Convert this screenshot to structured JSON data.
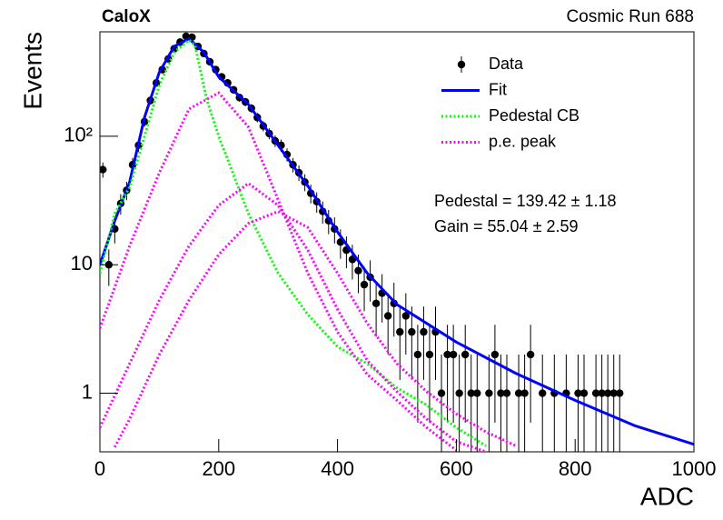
{
  "chart_data": {
    "type": "histfit",
    "title": "CaloX",
    "subtitle": "Cosmic Run 688",
    "x_label": "ADC",
    "y_label": "Events",
    "xlim": [
      0,
      1000
    ],
    "ylim": [
      0.35,
      650
    ],
    "log_y": true,
    "xticks": [
      0,
      200,
      400,
      600,
      800,
      1000
    ],
    "yticks": [
      1,
      10,
      {
        "value": 100,
        "label": "10²"
      }
    ],
    "legend": "top-right",
    "annotations": [
      "Pedestal = 139.42 ± 1.18",
      "Gain = 55.04 ± 2.59"
    ],
    "series": [
      {
        "name": "Data",
        "color": "#000000",
        "style": "points",
        "x": [
          5,
          15,
          25,
          35,
          45,
          55,
          65,
          75,
          85,
          95,
          105,
          115,
          125,
          135,
          145,
          155,
          165,
          175,
          185,
          195,
          205,
          215,
          225,
          235,
          245,
          255,
          265,
          275,
          285,
          295,
          305,
          315,
          325,
          335,
          345,
          355,
          365,
          375,
          385,
          395,
          405,
          415,
          425,
          435,
          445,
          455,
          465,
          475,
          485,
          495,
          505,
          515,
          525,
          535,
          545,
          555,
          565,
          575,
          585,
          595,
          605,
          615,
          625,
          635,
          645,
          655,
          665,
          675,
          685,
          695,
          705,
          715,
          725,
          735,
          745,
          755,
          765,
          775,
          785,
          795,
          805,
          815,
          825,
          835,
          845,
          855,
          865,
          875,
          885,
          895,
          905,
          915,
          925,
          935,
          945,
          955,
          965,
          975,
          985,
          995
        ],
        "values": [
          55,
          10,
          19,
          30,
          38,
          60,
          85,
          130,
          190,
          260,
          330,
          400,
          480,
          540,
          600,
          590,
          500,
          440,
          380,
          330,
          290,
          260,
          230,
          200,
          185,
          165,
          140,
          120,
          105,
          92,
          85,
          72,
          60,
          52,
          44,
          36,
          31,
          26,
          22,
          19,
          15,
          13,
          11,
          9,
          7,
          8,
          5,
          6,
          4,
          5,
          3,
          4,
          3,
          2,
          3,
          2,
          3,
          1,
          2,
          2,
          1,
          2,
          1,
          1,
          null,
          1,
          2,
          1,
          1,
          null,
          1,
          1,
          2,
          null,
          1,
          null,
          1,
          null,
          1,
          null,
          1,
          1,
          null,
          1,
          1,
          1,
          1,
          1,
          null,
          null,
          null,
          null,
          null,
          null,
          null,
          null,
          null,
          null,
          null,
          null
        ],
        "errors": [
          7.42,
          3.16,
          4.36,
          5.48,
          6.16,
          7.75,
          9.22,
          11.4,
          13.78,
          16.12,
          18.17,
          20,
          21.91,
          23.24,
          24.49,
          24.29,
          22.36,
          20.98,
          19.49,
          18.17,
          17.03,
          16.12,
          15.17,
          14.14,
          13.6,
          12.85,
          11.83,
          10.95,
          10.25,
          9.59,
          9.22,
          8.49,
          7.75,
          7.21,
          6.63,
          6,
          5.57,
          5.1,
          4.69,
          4.36,
          3.87,
          3.61,
          3.32,
          3,
          2.65,
          2.83,
          2.24,
          2.45,
          2,
          2.24,
          1.73,
          2,
          1.73,
          1.41,
          1.73,
          1.41,
          1.73,
          1,
          1.41,
          1.41,
          1,
          1.41,
          1,
          1,
          null,
          1,
          1.41,
          1,
          1,
          null,
          1,
          1,
          1.41,
          null,
          1,
          null,
          1,
          null,
          1,
          null,
          1,
          1,
          null,
          1,
          1,
          1,
          1,
          1,
          null,
          null,
          null,
          null,
          null,
          null,
          null,
          null,
          null,
          null,
          null,
          null
        ]
      },
      {
        "name": "Fit",
        "color": "#0000ff",
        "style": "solid",
        "curves": [
          {
            "x": [
              0,
              25,
              50,
              75,
              100,
              125,
              150,
              175,
              200,
              250,
              300,
              350,
              400,
              450,
              500,
              600,
              700,
              800,
              900,
              1000
            ],
            "values": [
              10,
              22,
              44,
              140,
              315,
              500,
              575,
              450,
              290,
              177,
              85,
              41,
              18,
              8.6,
              4.9,
              2.5,
              1.43,
              0.88,
              0.56,
              0.4
            ]
          }
        ]
      },
      {
        "name": "Pedestal CB",
        "color": "#00ff00",
        "style": "dotted",
        "curves": [
          {
            "x": [
              0,
              25,
              50,
              100,
              125,
              150,
              160,
              180,
              200,
              250,
              300,
              350,
              400,
              450,
              500,
              550,
              600,
              650
            ],
            "values": [
              8.6,
              25,
              40,
              250,
              450,
              560,
              510,
              192,
              100,
              25,
              8.6,
              4.1,
              2.3,
              1.7,
              1.1,
              0.81,
              0.54,
              0.39
            ]
          }
        ]
      },
      {
        "name": "p.e. peak",
        "color": "#ff00ff",
        "style": "dotted",
        "curves": [
          {
            "x": [
              0,
              50,
              100,
              150,
              200,
              250,
              300,
              350,
              400,
              450,
              500,
              550,
              600
            ],
            "values": [
              3.2,
              14,
              52,
              163,
              218,
              118,
              32,
              8.6,
              3,
              1.4,
              0.88,
              0.54,
              0.36
            ]
          },
          {
            "x": [
              0,
              50,
              100,
              150,
              200,
              250,
              300,
              350,
              400,
              450,
              500,
              550,
              600,
              650
            ],
            "values": [
              0.54,
              1.7,
              5.3,
              14,
              29,
              43,
              29,
              13,
              4.5,
              1.8,
              1.03,
              0.63,
              0.42,
              0.35
            ]
          },
          {
            "x": [
              25,
              50,
              100,
              150,
              200,
              250,
              300,
              350,
              400,
              450,
              500,
              550,
              600,
              650,
              700
            ],
            "values": [
              0.38,
              0.63,
              2,
              5.3,
              12,
              21,
              26,
              19.5,
              8.6,
              3.5,
              1.7,
              1.03,
              0.69,
              0.5,
              0.39
            ]
          }
        ]
      }
    ]
  }
}
